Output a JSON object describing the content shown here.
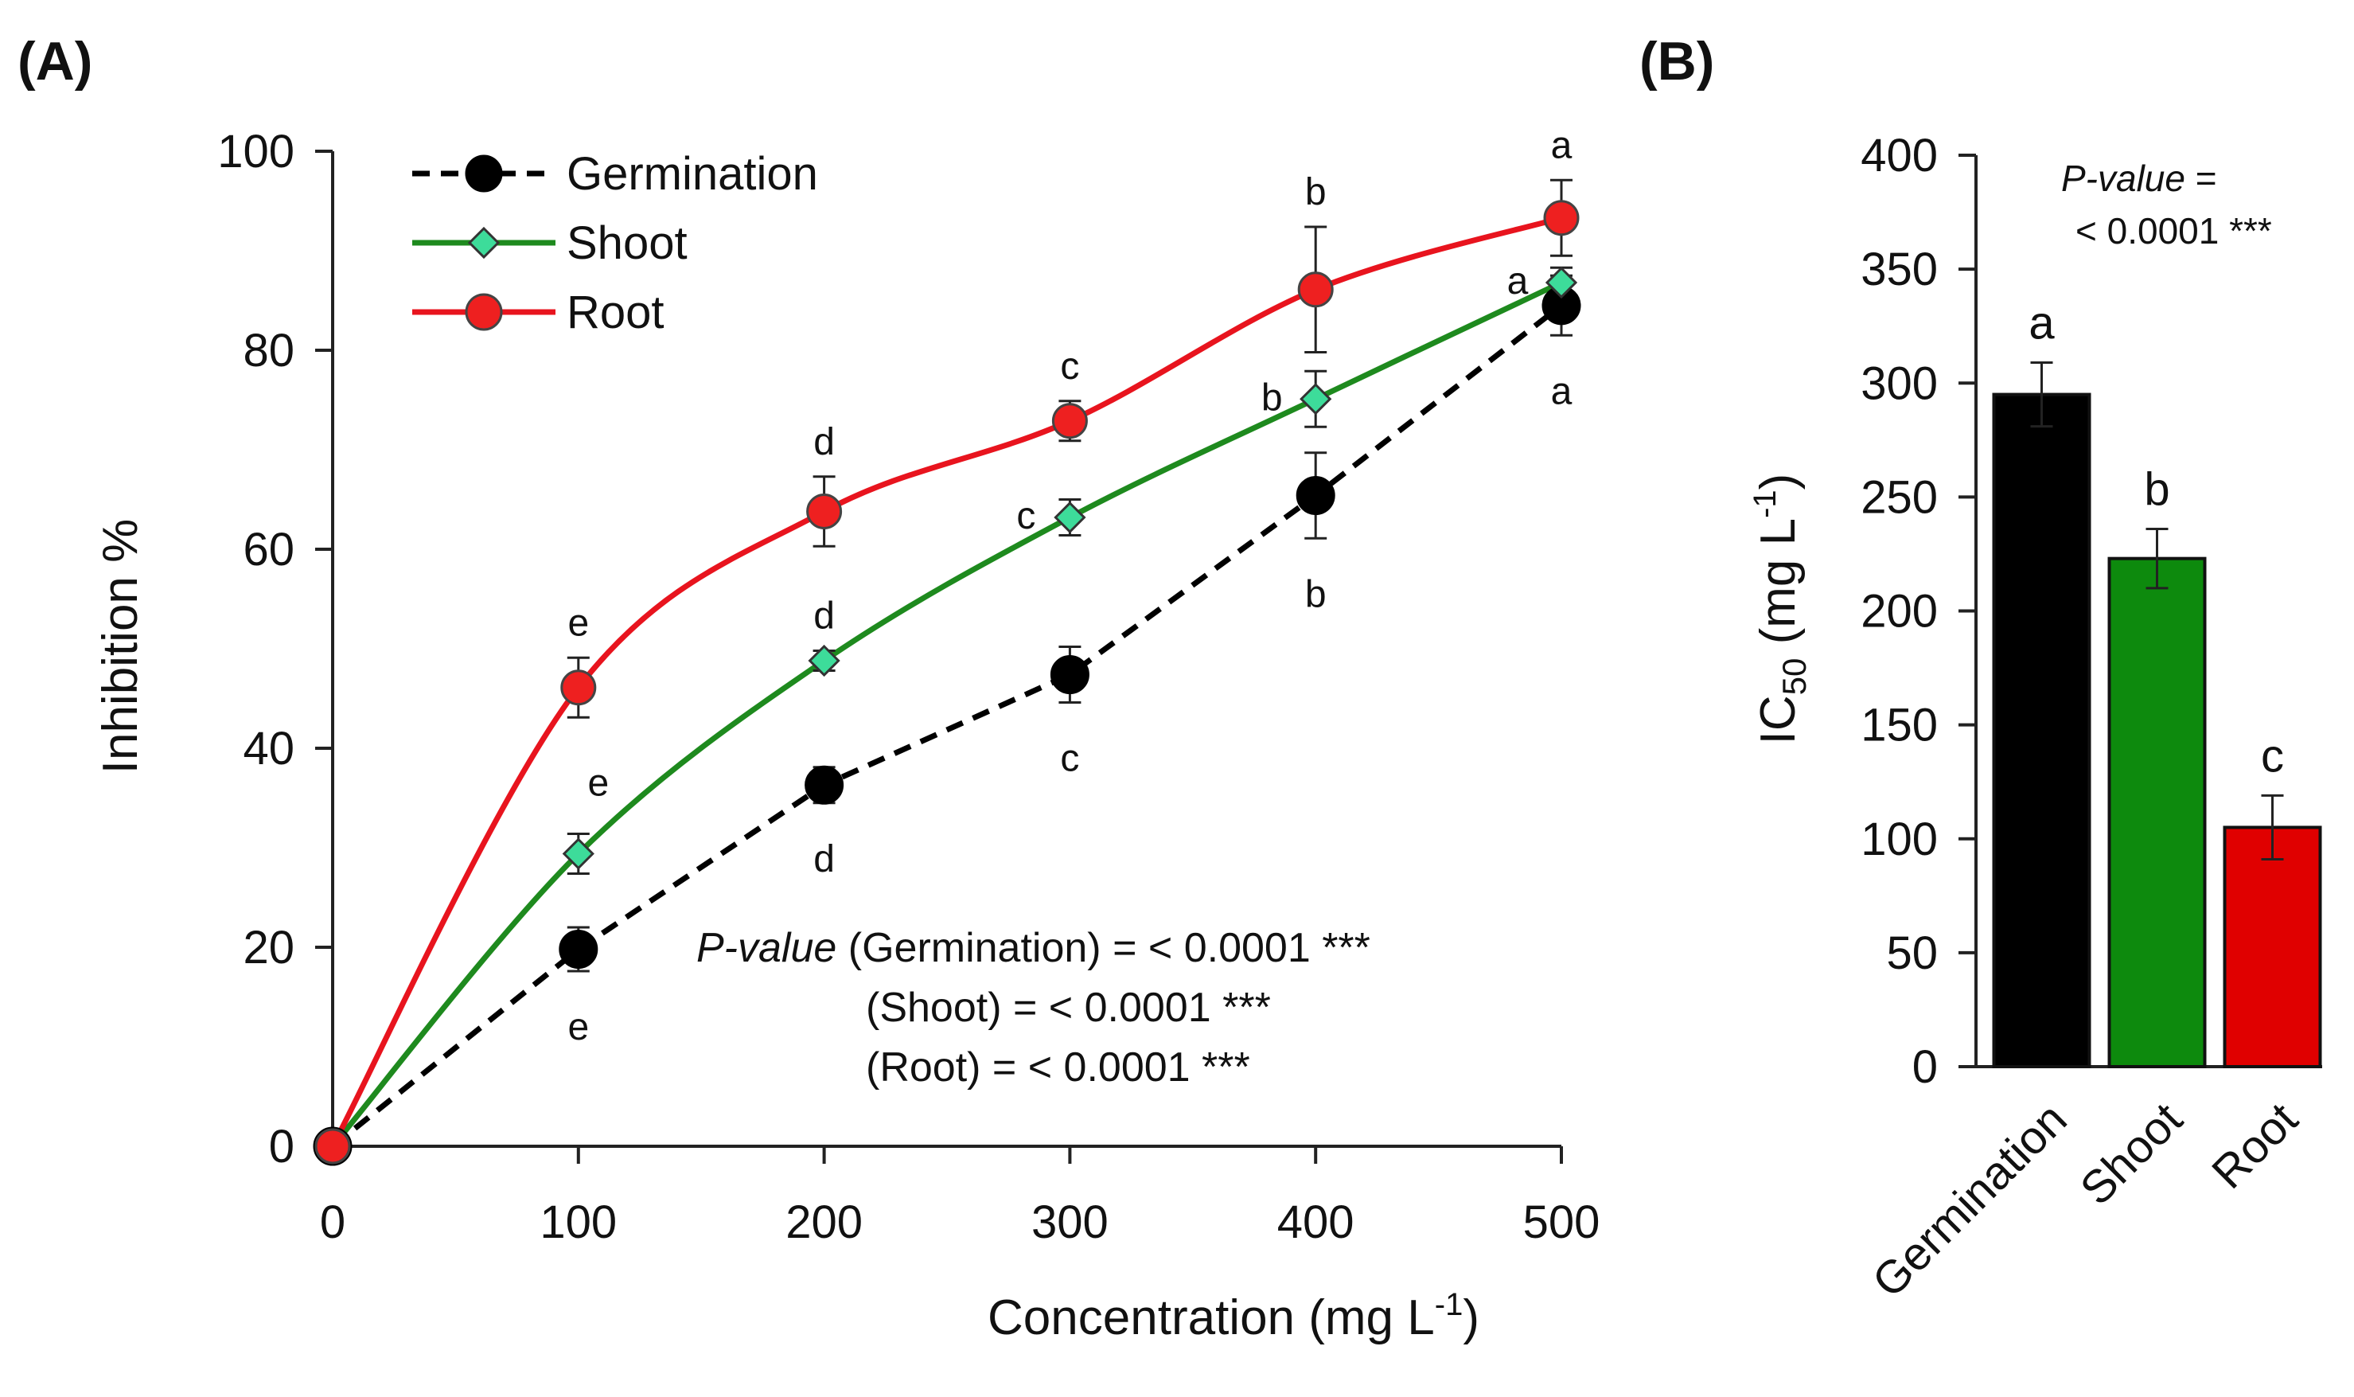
{
  "chart_data": [
    {
      "panel": "(A)",
      "type": "line",
      "xlabel": "Concentration (mg L",
      "xlabel_sup": "-1",
      "xlabel_close": ")",
      "ylabel": "Inhibition %",
      "x": [
        0,
        100,
        200,
        300,
        400,
        500
      ],
      "xlim": [
        0,
        500
      ],
      "ylim": [
        0,
        100
      ],
      "xticks": [
        "0",
        "100",
        "200",
        "300",
        "400",
        "500"
      ],
      "yticks": [
        "0",
        "20",
        "40",
        "60",
        "80",
        "100"
      ],
      "legend_position": "top-left",
      "series": [
        {
          "name": "Germination",
          "color": "#000000",
          "marker": "circle",
          "marker_fill": "#000000",
          "dashed": true,
          "values": [
            0,
            19.8,
            36.3,
            47.4,
            65.4,
            84.5
          ],
          "errors": [
            0,
            2.2,
            1.8,
            2.8,
            4.3,
            3.0
          ],
          "letters": [
            "",
            "e",
            "d",
            "c",
            "b",
            "a"
          ],
          "letter_side": [
            "",
            "below",
            "below",
            "below",
            "below",
            "below"
          ]
        },
        {
          "name": "Shoot",
          "color": "#1e8a1e",
          "marker": "diamond",
          "marker_fill": "#3ddc9a",
          "dashed": false,
          "values": [
            0,
            29.4,
            48.8,
            63.2,
            75.1,
            86.8
          ],
          "errors": [
            0,
            2.0,
            1.0,
            1.8,
            2.8,
            1.5
          ],
          "letters": [
            "",
            "e",
            "d",
            "c",
            "b",
            "a"
          ],
          "letter_side": [
            "",
            "upper-right",
            "above",
            "left",
            "left",
            "left"
          ]
        },
        {
          "name": "Root",
          "color": "#e8141e",
          "marker": "circle",
          "marker_fill": "#ee2020",
          "dashed": false,
          "values": [
            0,
            46.1,
            63.8,
            72.9,
            86.1,
            93.3
          ],
          "errors": [
            0,
            3.0,
            3.5,
            2.0,
            6.3,
            3.8
          ],
          "letters": [
            "",
            "e",
            "d",
            "c",
            "b",
            "a"
          ],
          "letter_side": [
            "",
            "above",
            "above",
            "above",
            "above",
            "above"
          ]
        }
      ],
      "annotation": {
        "line1_italic": "P-value",
        "line1_rest": " (Germination) = < 0.0001 ***",
        "line2": "(Shoot) = < 0.0001 ***",
        "line3": "(Root) = < 0.0001 ***"
      }
    },
    {
      "panel": "(B)",
      "type": "bar",
      "ylabel": "IC",
      "ylabel_sub": "50",
      "ylabel_rest": " (mg L",
      "ylabel_sup": "-1",
      "ylabel_close": ")",
      "categories": [
        "Germination",
        "Shoot",
        "Root"
      ],
      "values": [
        295,
        223,
        105
      ],
      "errors": [
        14,
        13,
        14
      ],
      "colors": [
        "#000000",
        "#0d8a0d",
        "#e00000"
      ],
      "letters": [
        "a",
        "b",
        "c"
      ],
      "ylim": [
        0,
        400
      ],
      "yticks": [
        "0",
        "50",
        "100",
        "150",
        "200",
        "250",
        "300",
        "350",
        "400"
      ],
      "annotation": {
        "line1_italic": "P-value",
        "line1_rest": " =",
        "line2": "< 0.0001 ***"
      }
    }
  ]
}
